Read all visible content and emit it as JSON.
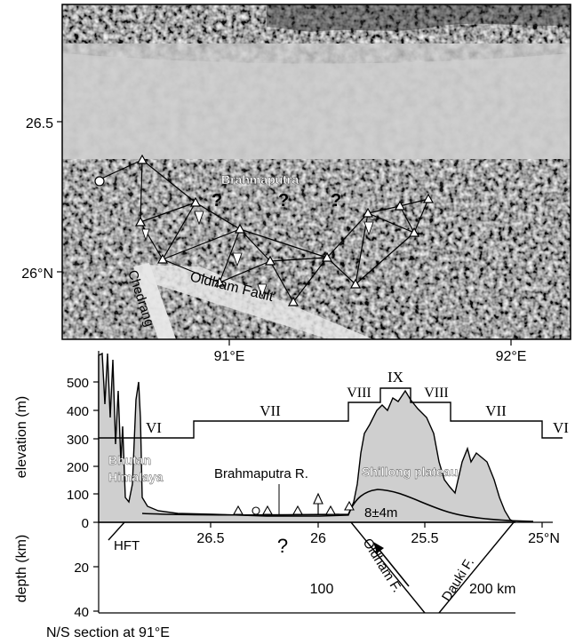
{
  "map": {
    "lat_ticks": [
      "26.5",
      "26°N"
    ],
    "lon_ticks": [
      "91°E",
      "92°E"
    ],
    "labels": {
      "brahmaputra": "Brahmaputra",
      "chedrang": "Chedrang",
      "oldham_fault": "Oldham Fault",
      "question_marks": [
        "?",
        "?",
        "?"
      ]
    }
  },
  "section": {
    "elevation_axis_label": "elevation (m)",
    "elevation_ticks": [
      "500",
      "400",
      "300",
      "200",
      "100",
      "0"
    ],
    "depth_axis_label": "depth (km)",
    "depth_ticks": [
      "20",
      "40"
    ],
    "lat_ticks": [
      "26.5",
      "26",
      "25.5",
      "25°N"
    ],
    "intensity_labels": [
      "VI",
      "VII",
      "VIII",
      "IX",
      "VIII",
      "VII",
      "VI"
    ],
    "region_labels": {
      "bhutan": "Bhutan",
      "himalaya": "Himalaya",
      "brahmaputra_r": "Brahmaputra R.",
      "shillong": "Shillong plateau"
    },
    "uplift_label": "8±4m",
    "hft": "HFT",
    "question": "?",
    "oldham_f": "Oldham F.",
    "dauki_f": "Dauki F.",
    "distance_100": "100",
    "distance_200": "200 km",
    "caption": "N/S section at 91°E"
  },
  "colors": {
    "relief_light": "#d6d6d6",
    "relief_mid": "#b0b0b0",
    "relief_dark": "#3a3a3a",
    "profile_fill": "#cfcfcf",
    "fault_band": "#e6e6e6"
  }
}
